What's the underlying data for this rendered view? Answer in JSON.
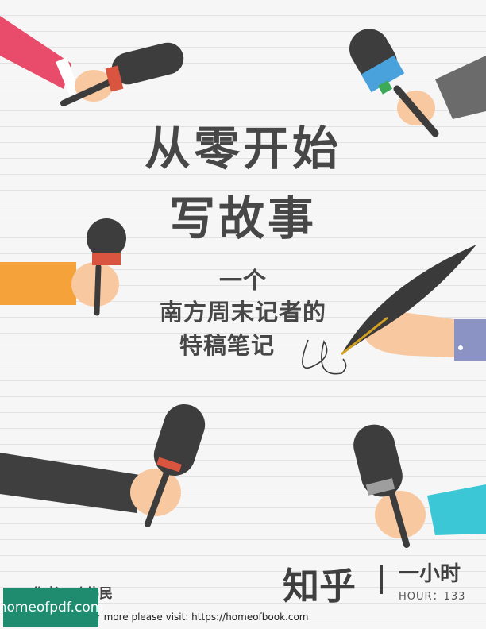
{
  "book": {
    "title_line1": "从零开始",
    "title_line2": "写故事",
    "subtitle_line1": "一个",
    "subtitle_line2": "南方周末记者的",
    "subtitle_line3": "特稿笔记",
    "author": "作者：叶伟民",
    "publisher_brand": "知乎",
    "series_name": "一小时",
    "hour_label": "HOUR：133"
  },
  "watermark": {
    "badge_text": "homeofpdf.com",
    "visit_text": "For more please visit: https://homeofbook.com"
  },
  "colors": {
    "background": "#f6f6f6",
    "title": "#474747",
    "badge": "#1f8b6f",
    "sleeve_pink": "#e94c6b",
    "sleeve_blue": "#4aa2dc",
    "sleeve_orange": "#f5a23a",
    "sleeve_gray": "#666666",
    "sleeve_navy": "#8a93c4",
    "sleeve_cyan": "#3cc7d6",
    "skin": "#f8c8a0"
  },
  "icons": [
    "microphone-icon",
    "quill-pen-icon"
  ]
}
